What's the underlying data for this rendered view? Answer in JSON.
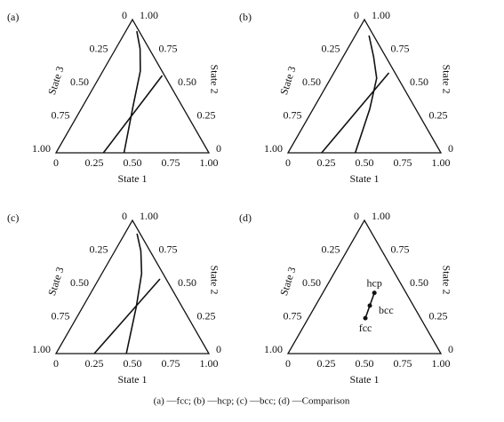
{
  "chart_data": [
    {
      "type": "ternary",
      "panel": "(a)",
      "xlabel": "State 1",
      "ylabel": "State 3",
      "y2label": "State 2",
      "xticks": [
        0,
        0.25,
        {
          "value": 0.5,
          "label": "0.50"
        },
        0.75,
        {
          "value": 1,
          "label": "1.00"
        }
      ],
      "yticks": [
        0,
        0.25,
        {
          "value": 0.5,
          "label": "0.50"
        },
        0.75,
        {
          "value": 1,
          "label": "1.00"
        }
      ],
      "y2ticks": [
        0,
        0.25,
        {
          "value": 0.5,
          "label": "0.50"
        },
        0.75,
        {
          "value": 1,
          "label": "1.00"
        }
      ],
      "series": [
        {
          "color": "#111111",
          "x": [
            0.445,
            0.33,
            0.245,
            0.16,
            0.072
          ],
          "y": [
            0,
            0.347,
            0.613,
            0.78,
            0.913
          ]
        },
        {
          "color": "#111111",
          "x": [
            0.31,
            0.405
          ],
          "y": [
            0,
            0.58
          ]
        }
      ]
    },
    {
      "type": "ternary",
      "panel": "(b)",
      "xlabel": "State 1",
      "ylabel": "State 3",
      "y2label": "State 2",
      "xticks": [
        0,
        0.25,
        {
          "value": 0.5,
          "label": "0.50"
        },
        0.75,
        {
          "value": 1,
          "label": "1.00"
        }
      ],
      "yticks": [
        0,
        0.25,
        {
          "value": 0.5,
          "label": "0.50"
        },
        0.75,
        {
          "value": 1,
          "label": "1.00"
        }
      ],
      "y2ticks": [
        0,
        0.25,
        {
          "value": 0.5,
          "label": "0.50"
        },
        0.75,
        {
          "value": 1,
          "label": "1.00"
        }
      ],
      "series": [
        {
          "color": "#111111",
          "x": [
            0.44,
            0.37,
            0.3,
            0.2,
            0.09
          ],
          "y": [
            0,
            0.33,
            0.56,
            0.72,
            0.88
          ]
        },
        {
          "color": "#111111",
          "x": [
            0.22,
            0.36
          ],
          "y": [
            0,
            0.6
          ]
        }
      ]
    },
    {
      "type": "ternary",
      "panel": "(c)",
      "xlabel": "State 1",
      "ylabel": "State 3",
      "y2label": "State 2",
      "xticks": [
        0,
        0.25,
        {
          "value": 0.5,
          "label": "0.50"
        },
        0.75,
        {
          "value": 1,
          "label": "1.00"
        }
      ],
      "yticks": [
        0,
        0.25,
        {
          "value": 0.5,
          "label": "0.50"
        },
        0.75,
        {
          "value": 1,
          "label": "1.00"
        }
      ],
      "y2ticks": [
        0,
        0.25,
        {
          "value": 0.5,
          "label": "0.50"
        },
        0.75,
        {
          "value": 1,
          "label": "1.00"
        }
      ],
      "series": [
        {
          "color": "#111111",
          "x": [
            0.46,
            0.35,
            0.26,
            0.17,
            0.08
          ],
          "y": [
            0,
            0.35,
            0.6,
            0.77,
            0.9
          ]
        },
        {
          "color": "#111111",
          "x": [
            0.25,
            0.4
          ],
          "y": [
            0,
            0.56
          ]
        }
      ]
    },
    {
      "type": "ternary",
      "panel": "(d)",
      "xlabel": "State 1",
      "ylabel": "State 3",
      "y2label": "State 2",
      "xticks": [
        0,
        0.25,
        {
          "value": 0.5,
          "label": "0.50"
        },
        0.75,
        {
          "value": 1,
          "label": "1.00"
        }
      ],
      "yticks": [
        0,
        0.25,
        {
          "value": 0.5,
          "label": "0.50"
        },
        0.75,
        {
          "value": 1,
          "label": "1.00"
        }
      ],
      "y2ticks": [
        0,
        0.25,
        {
          "value": 0.5,
          "label": "0.50"
        },
        0.75,
        {
          "value": 1,
          "label": "1.00"
        }
      ],
      "series": [
        {
          "color": "#111111",
          "x": [
            0.337,
            0.355,
            0.373
          ],
          "y": [
            0.456,
            0.36,
            0.266
          ],
          "point_labels": [
            "hcp",
            "bcc",
            "fcc"
          ]
        }
      ]
    }
  ],
  "caption": "(a) —fcc; (b) —hcp; (c) —bcc; (d) —Comparison"
}
